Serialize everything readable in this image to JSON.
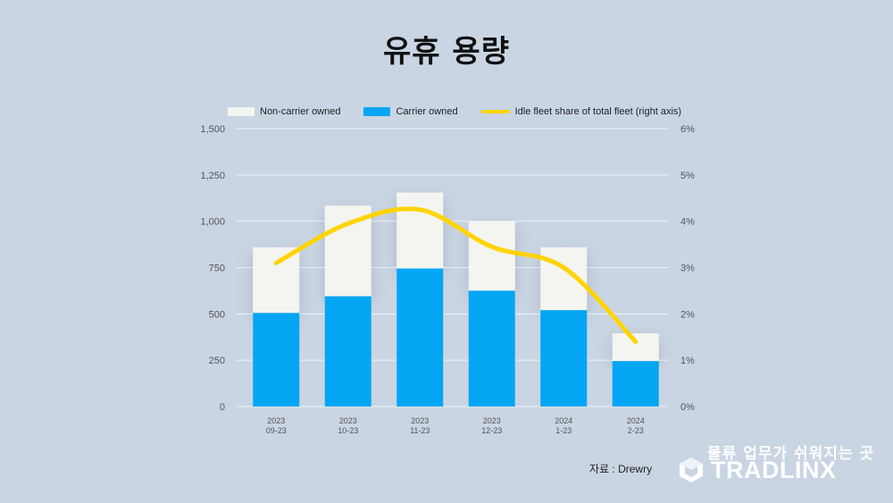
{
  "title": "유휴 용량",
  "legend": {
    "non_carrier": "Non-carrier owned",
    "carrier": "Carrier owned",
    "idle_share": "Idle fleet share of total fleet (right axis)"
  },
  "source": "자료 : Drewry",
  "brand": {
    "tagline": "물류 업무가 쉬워지는 곳",
    "name": "TRADLINX"
  },
  "colors": {
    "background": "#c9d5e3",
    "non_carrier": "#f4f4f0",
    "carrier": "#04a6f4",
    "idle_line": "#ffd400"
  },
  "chart_data": {
    "type": "bar",
    "stacked": true,
    "categories": [
      "2023\n09-23",
      "2023\n10-23",
      "2023\n11-23",
      "2023\n12-23",
      "2024\n1-23",
      "2024\n2-23"
    ],
    "category_lines": [
      [
        "2023",
        "09-23"
      ],
      [
        "2023",
        "10-23"
      ],
      [
        "2023",
        "11-23"
      ],
      [
        "2023",
        "12-23"
      ],
      [
        "2024",
        "1-23"
      ],
      [
        "2024",
        "2-23"
      ]
    ],
    "series": [
      {
        "name": "Carrier owned",
        "values": [
          505,
          595,
          745,
          625,
          520,
          245
        ]
      },
      {
        "name": "Non-carrier owned",
        "values": [
          355,
          490,
          410,
          375,
          340,
          150
        ]
      },
      {
        "name": "Idle fleet share of total fleet (right axis)",
        "axis": "right",
        "type": "line",
        "values": [
          3.1,
          3.95,
          4.25,
          3.45,
          3.0,
          1.4
        ]
      }
    ],
    "ylim": [
      0,
      1500
    ],
    "yticks": [
      "0",
      "250",
      "500",
      "750",
      "1,000",
      "1,250",
      "1,500"
    ],
    "y2lim": [
      0,
      6
    ],
    "y2ticks": [
      "0%",
      "1%",
      "2%",
      "3%",
      "4%",
      "5%",
      "6%"
    ],
    "grid": true,
    "legend_position": "top"
  }
}
